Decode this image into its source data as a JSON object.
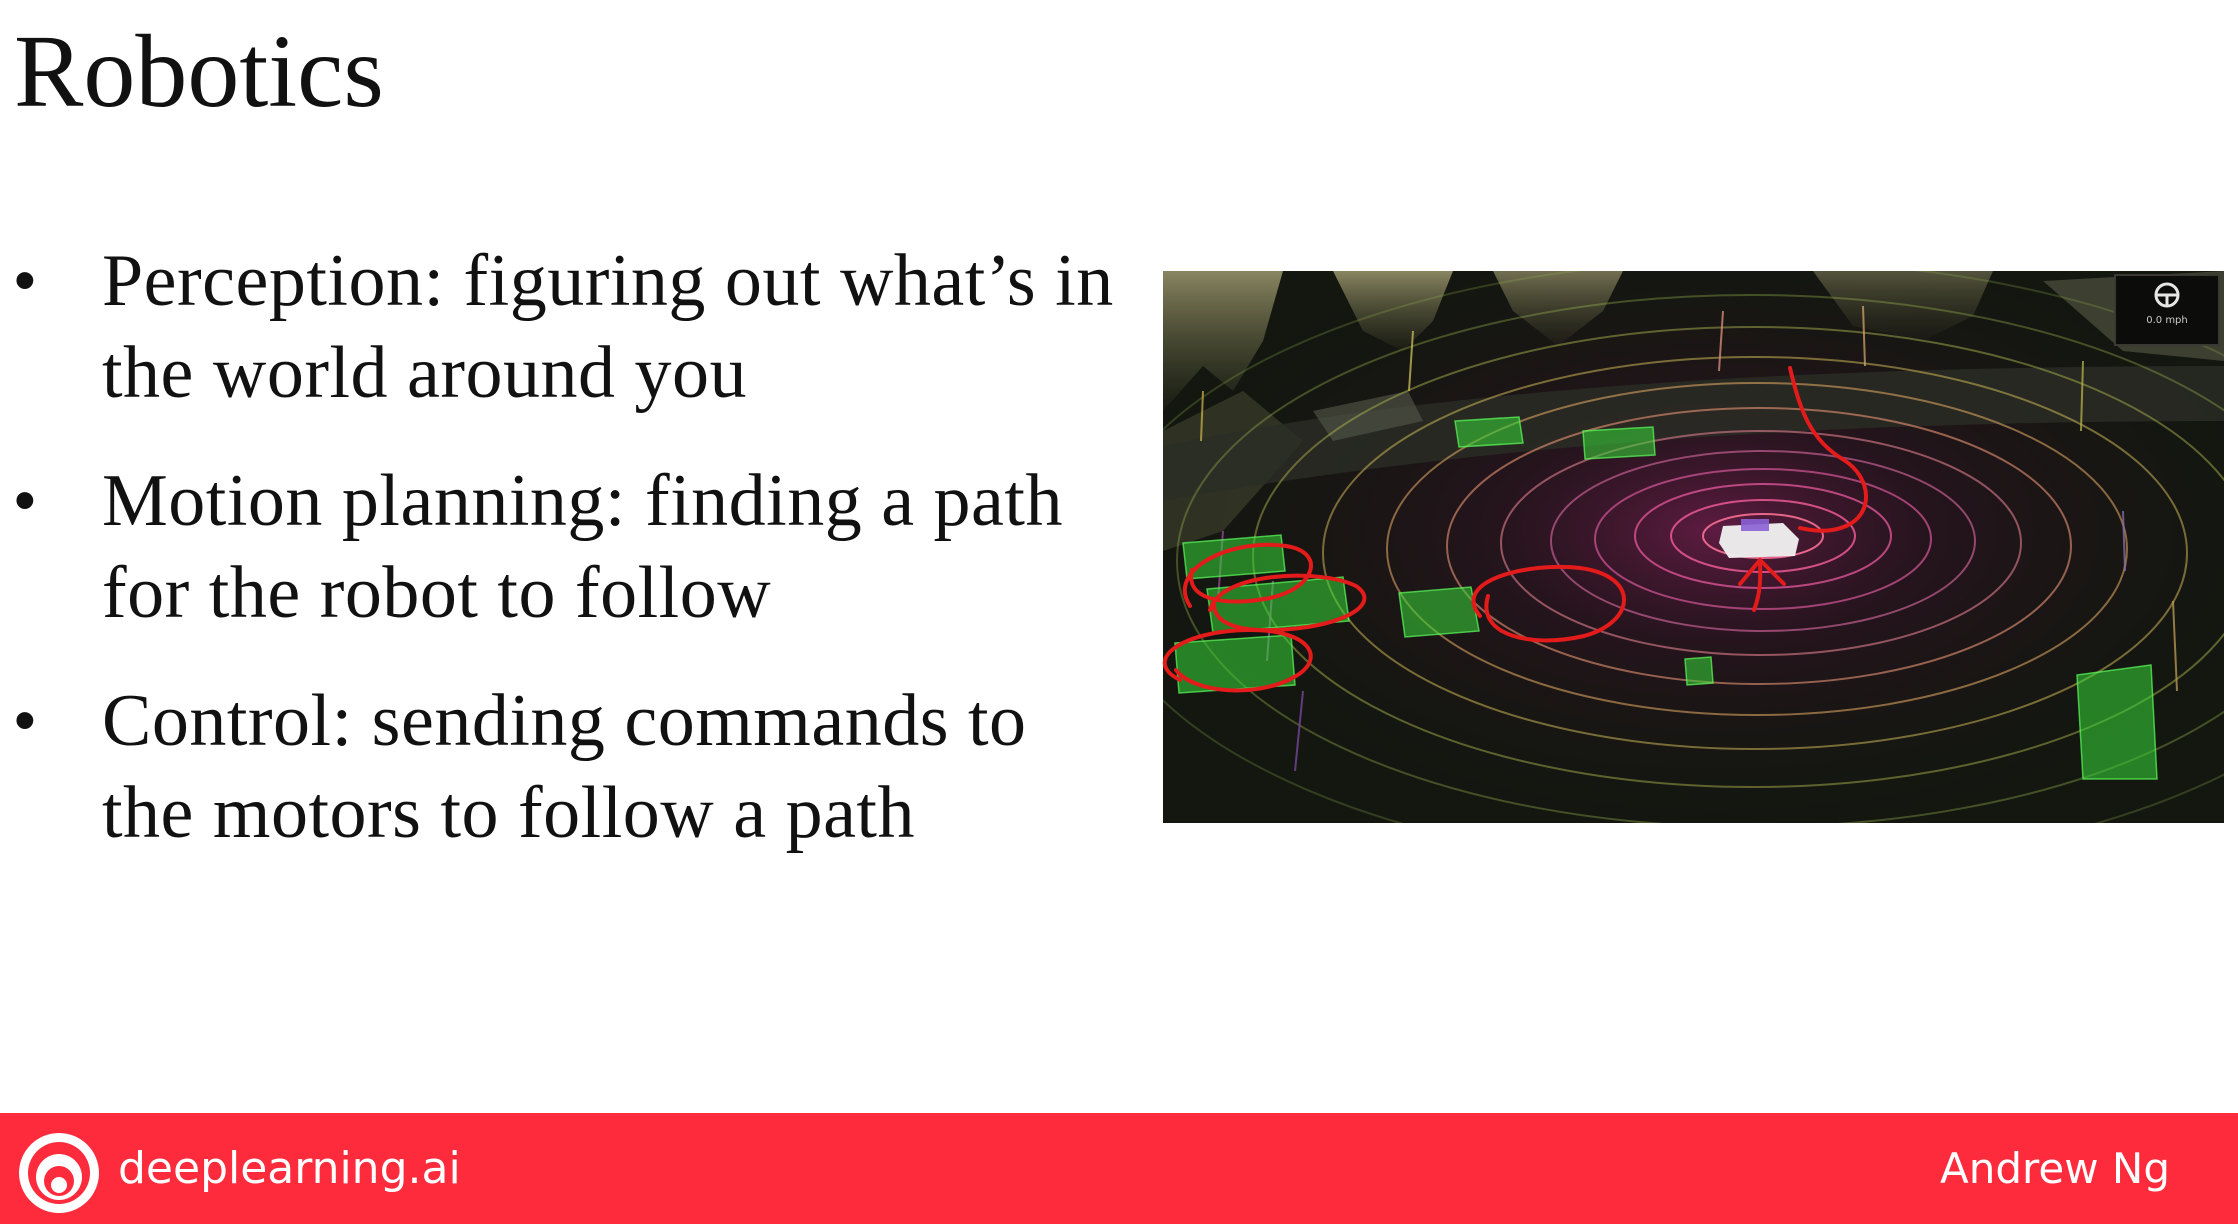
{
  "slide": {
    "title": "Robotics",
    "bullets": [
      {
        "marker": "•",
        "text": "Perception: figuring out what’s in the world around you"
      },
      {
        "marker": "•",
        "text": "Motion planning: finding a path for the robot to follow"
      },
      {
        "marker": "•",
        "text": "Control: sending commands to the motors to follow a path"
      }
    ]
  },
  "scene": {
    "description_icon": "steering-wheel-icon",
    "speed_readout": "0.0 mph"
  },
  "footer": {
    "brand": "deeplearning.ai",
    "author": "Andrew Ng",
    "accent_color": "#fe2b3d",
    "logo_icon": "deeplearning-logo-icon"
  }
}
